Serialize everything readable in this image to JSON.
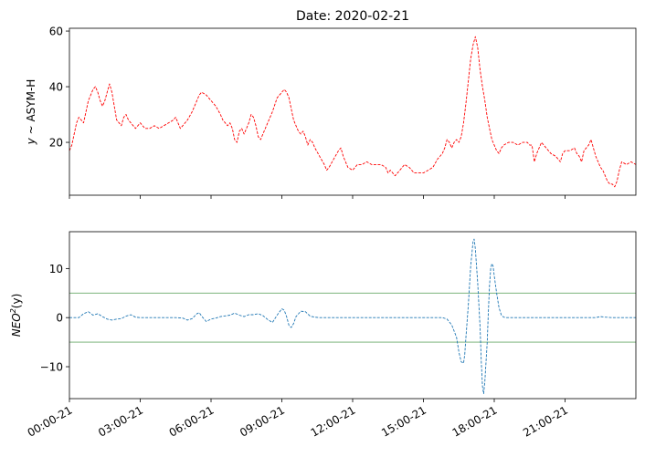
{
  "figure": {
    "title": "Date: 2020-02-21",
    "x_tick_labels": [
      "00:00-21",
      "03:00-21",
      "06:00-21",
      "09:00-21",
      "12:00-21",
      "15:00-21",
      "18:00-21",
      "21:00-21"
    ]
  },
  "chart_data": [
    {
      "type": "line",
      "ylabel": "y ~ ASYM-H",
      "ylabel_parts": {
        "var": "y",
        "rest": " ~ ASYM-H"
      },
      "xlim_hours": [
        0,
        24
      ],
      "ylim": [
        1,
        61
      ],
      "y_ticks": [
        20,
        40,
        60
      ],
      "y_tick_labels": [
        "20",
        "40",
        "60"
      ],
      "grid": false,
      "series": [
        {
          "color": "#ff0000",
          "linestyle": "dashed",
          "points": [
            [
              0.0,
              17
            ],
            [
              0.1,
              19
            ],
            [
              0.2,
              23
            ],
            [
              0.3,
              27
            ],
            [
              0.4,
              29
            ],
            [
              0.5,
              28
            ],
            [
              0.6,
              27
            ],
            [
              0.7,
              31
            ],
            [
              0.8,
              35
            ],
            [
              0.9,
              37
            ],
            [
              1.0,
              39
            ],
            [
              1.1,
              40
            ],
            [
              1.2,
              38
            ],
            [
              1.3,
              35
            ],
            [
              1.4,
              33
            ],
            [
              1.5,
              35
            ],
            [
              1.6,
              38
            ],
            [
              1.7,
              41
            ],
            [
              1.8,
              38
            ],
            [
              1.9,
              33
            ],
            [
              2.0,
              28
            ],
            [
              2.1,
              27
            ],
            [
              2.2,
              26
            ],
            [
              2.3,
              29
            ],
            [
              2.4,
              30
            ],
            [
              2.5,
              28
            ],
            [
              2.6,
              27
            ],
            [
              2.7,
              26
            ],
            [
              2.8,
              25
            ],
            [
              2.9,
              26
            ],
            [
              3.0,
              27
            ],
            [
              3.1,
              26
            ],
            [
              3.2,
              25
            ],
            [
              3.4,
              25
            ],
            [
              3.6,
              26
            ],
            [
              3.8,
              25
            ],
            [
              4.0,
              26
            ],
            [
              4.2,
              27
            ],
            [
              4.4,
              28
            ],
            [
              4.5,
              29
            ],
            [
              4.6,
              27
            ],
            [
              4.7,
              25
            ],
            [
              4.8,
              26
            ],
            [
              5.0,
              28
            ],
            [
              5.2,
              31
            ],
            [
              5.4,
              35
            ],
            [
              5.5,
              37
            ],
            [
              5.6,
              38
            ],
            [
              5.8,
              37
            ],
            [
              6.0,
              35
            ],
            [
              6.2,
              33
            ],
            [
              6.4,
              30
            ],
            [
              6.5,
              28
            ],
            [
              6.6,
              27
            ],
            [
              6.7,
              26
            ],
            [
              6.8,
              27
            ],
            [
              6.9,
              25
            ],
            [
              7.0,
              21
            ],
            [
              7.1,
              20
            ],
            [
              7.2,
              24
            ],
            [
              7.3,
              25
            ],
            [
              7.4,
              23
            ],
            [
              7.5,
              25
            ],
            [
              7.6,
              27
            ],
            [
              7.7,
              30
            ],
            [
              7.8,
              29
            ],
            [
              7.9,
              26
            ],
            [
              8.0,
              22
            ],
            [
              8.1,
              21
            ],
            [
              8.2,
              23
            ],
            [
              8.4,
              27
            ],
            [
              8.6,
              31
            ],
            [
              8.8,
              36
            ],
            [
              9.0,
              38
            ],
            [
              9.1,
              39
            ],
            [
              9.2,
              38
            ],
            [
              9.3,
              36
            ],
            [
              9.4,
              32
            ],
            [
              9.5,
              28
            ],
            [
              9.6,
              26
            ],
            [
              9.7,
              24
            ],
            [
              9.8,
              23
            ],
            [
              9.9,
              24
            ],
            [
              10.0,
              22
            ],
            [
              10.1,
              19
            ],
            [
              10.2,
              21
            ],
            [
              10.3,
              20
            ],
            [
              10.4,
              18
            ],
            [
              10.6,
              15
            ],
            [
              10.8,
              12
            ],
            [
              10.9,
              10
            ],
            [
              11.0,
              11
            ],
            [
              11.2,
              14
            ],
            [
              11.4,
              17
            ],
            [
              11.5,
              18
            ],
            [
              11.6,
              15
            ],
            [
              11.8,
              11
            ],
            [
              12.0,
              10
            ],
            [
              12.2,
              12
            ],
            [
              12.4,
              12
            ],
            [
              12.6,
              13
            ],
            [
              12.8,
              12
            ],
            [
              13.0,
              12
            ],
            [
              13.2,
              12
            ],
            [
              13.4,
              11
            ],
            [
              13.5,
              9
            ],
            [
              13.6,
              10
            ],
            [
              13.8,
              8
            ],
            [
              14.0,
              10
            ],
            [
              14.2,
              12
            ],
            [
              14.4,
              11
            ],
            [
              14.6,
              9
            ],
            [
              14.8,
              9
            ],
            [
              15.0,
              9
            ],
            [
              15.2,
              10
            ],
            [
              15.4,
              11
            ],
            [
              15.6,
              14
            ],
            [
              15.8,
              16
            ],
            [
              15.9,
              18
            ],
            [
              16.0,
              21
            ],
            [
              16.1,
              20
            ],
            [
              16.2,
              18
            ],
            [
              16.3,
              20
            ],
            [
              16.4,
              21
            ],
            [
              16.5,
              20
            ],
            [
              16.6,
              22
            ],
            [
              16.7,
              27
            ],
            [
              16.8,
              34
            ],
            [
              16.9,
              42
            ],
            [
              17.0,
              50
            ],
            [
              17.1,
              55
            ],
            [
              17.2,
              58
            ],
            [
              17.3,
              54
            ],
            [
              17.4,
              46
            ],
            [
              17.5,
              40
            ],
            [
              17.6,
              35
            ],
            [
              17.7,
              29
            ],
            [
              17.8,
              25
            ],
            [
              17.9,
              21
            ],
            [
              18.0,
              19
            ],
            [
              18.1,
              17
            ],
            [
              18.2,
              16
            ],
            [
              18.3,
              18
            ],
            [
              18.4,
              19
            ],
            [
              18.6,
              20
            ],
            [
              18.8,
              20
            ],
            [
              19.0,
              19
            ],
            [
              19.2,
              20
            ],
            [
              19.4,
              20
            ],
            [
              19.5,
              19
            ],
            [
              19.6,
              19
            ],
            [
              19.7,
              13
            ],
            [
              19.8,
              16
            ],
            [
              19.9,
              18
            ],
            [
              20.0,
              20
            ],
            [
              20.2,
              18
            ],
            [
              20.4,
              16
            ],
            [
              20.6,
              15
            ],
            [
              20.7,
              14
            ],
            [
              20.8,
              13
            ],
            [
              20.9,
              16
            ],
            [
              21.0,
              17
            ],
            [
              21.2,
              17
            ],
            [
              21.4,
              18
            ],
            [
              21.5,
              16
            ],
            [
              21.6,
              15
            ],
            [
              21.7,
              13
            ],
            [
              21.8,
              17
            ],
            [
              22.0,
              19
            ],
            [
              22.1,
              21
            ],
            [
              22.2,
              18
            ],
            [
              22.3,
              15
            ],
            [
              22.4,
              13
            ],
            [
              22.5,
              11
            ],
            [
              22.6,
              10
            ],
            [
              22.7,
              8
            ],
            [
              22.8,
              6
            ],
            [
              22.9,
              5
            ],
            [
              23.0,
              5
            ],
            [
              23.1,
              4
            ],
            [
              23.2,
              6
            ],
            [
              23.3,
              10
            ],
            [
              23.4,
              13
            ],
            [
              23.6,
              12
            ],
            [
              23.8,
              13
            ],
            [
              24.0,
              12
            ]
          ]
        }
      ]
    },
    {
      "type": "line",
      "ylabel": "NEO²(y)",
      "ylabel_parts": {
        "base": "NEO",
        "sup": "2",
        "rest": "(y)"
      },
      "xlim_hours": [
        0,
        24
      ],
      "ylim": [
        -16.5,
        17.5
      ],
      "y_ticks": [
        -10,
        0,
        10
      ],
      "y_tick_labels": [
        "−10",
        "0",
        "10"
      ],
      "grid": false,
      "threshold_lines": [
        5,
        -5
      ],
      "threshold_color": "#6aaa6a",
      "series": [
        {
          "color": "#1f77b4",
          "linestyle": "dashed",
          "points": [
            [
              0.0,
              0
            ],
            [
              0.4,
              0
            ],
            [
              0.6,
              0.8
            ],
            [
              0.8,
              1.2
            ],
            [
              1.0,
              0.5
            ],
            [
              1.2,
              0.8
            ],
            [
              1.4,
              0.2
            ],
            [
              1.6,
              -0.3
            ],
            [
              1.8,
              -0.5
            ],
            [
              2.0,
              -0.3
            ],
            [
              2.2,
              -0.2
            ],
            [
              2.4,
              0.3
            ],
            [
              2.6,
              0.6
            ],
            [
              2.8,
              0.1
            ],
            [
              3.0,
              0
            ],
            [
              4.5,
              0
            ],
            [
              4.8,
              -0.1
            ],
            [
              5.0,
              -0.5
            ],
            [
              5.2,
              -0.2
            ],
            [
              5.4,
              0.8
            ],
            [
              5.5,
              1.0
            ],
            [
              5.6,
              0.3
            ],
            [
              5.8,
              -0.8
            ],
            [
              6.0,
              -0.3
            ],
            [
              6.2,
              -0.1
            ],
            [
              6.4,
              0.2
            ],
            [
              6.8,
              0.5
            ],
            [
              7.0,
              0.9
            ],
            [
              7.2,
              0.5
            ],
            [
              7.4,
              0.2
            ],
            [
              7.6,
              0.6
            ],
            [
              7.8,
              0.6
            ],
            [
              8.0,
              0.8
            ],
            [
              8.2,
              0.4
            ],
            [
              8.4,
              -0.4
            ],
            [
              8.6,
              -1.0
            ],
            [
              8.8,
              0.5
            ],
            [
              9.0,
              1.8
            ],
            [
              9.1,
              1.5
            ],
            [
              9.2,
              0.2
            ],
            [
              9.3,
              -1.6
            ],
            [
              9.4,
              -2.0
            ],
            [
              9.5,
              -1.2
            ],
            [
              9.6,
              0.2
            ],
            [
              9.8,
              1.3
            ],
            [
              10.0,
              1.2
            ],
            [
              10.2,
              0.3
            ],
            [
              10.4,
              0.1
            ],
            [
              10.6,
              0
            ],
            [
              15.8,
              0
            ],
            [
              16.0,
              -0.3
            ],
            [
              16.2,
              -1.5
            ],
            [
              16.4,
              -4.0
            ],
            [
              16.5,
              -7.0
            ],
            [
              16.6,
              -9.0
            ],
            [
              16.7,
              -9.3
            ],
            [
              16.75,
              -7.5
            ],
            [
              16.8,
              -4.0
            ],
            [
              16.9,
              2.5
            ],
            [
              17.0,
              10.5
            ],
            [
              17.1,
              15.5
            ],
            [
              17.15,
              16.0
            ],
            [
              17.2,
              14.0
            ],
            [
              17.3,
              7.0
            ],
            [
              17.4,
              -2.0
            ],
            [
              17.45,
              -9.0
            ],
            [
              17.5,
              -14.0
            ],
            [
              17.55,
              -15.5
            ],
            [
              17.6,
              -13.0
            ],
            [
              17.7,
              -5.0
            ],
            [
              17.75,
              1.0
            ],
            [
              17.8,
              6.5
            ],
            [
              17.85,
              10.0
            ],
            [
              17.9,
              11.0
            ],
            [
              17.95,
              10.5
            ],
            [
              18.0,
              8.5
            ],
            [
              18.1,
              5.0
            ],
            [
              18.2,
              2.0
            ],
            [
              18.3,
              0.5
            ],
            [
              18.4,
              0.1
            ],
            [
              18.5,
              0
            ],
            [
              22.3,
              0
            ],
            [
              22.5,
              0.2
            ],
            [
              22.7,
              0.1
            ],
            [
              23.0,
              0
            ],
            [
              24.0,
              0
            ]
          ]
        }
      ]
    }
  ]
}
